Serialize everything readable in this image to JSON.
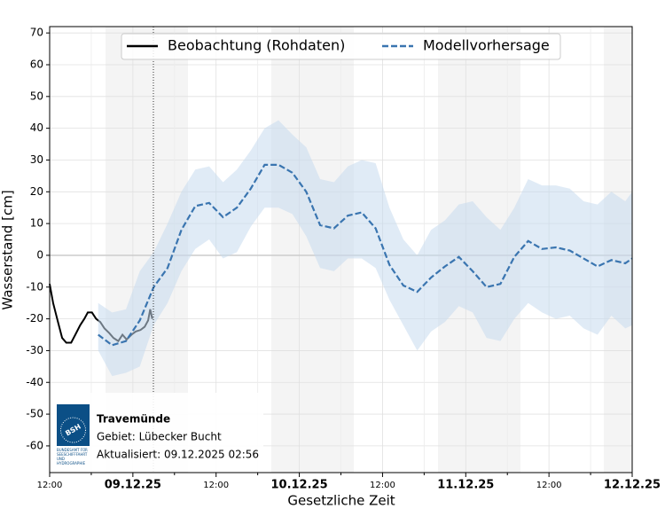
{
  "chart_data": {
    "type": "line",
    "xlabel": "Gesetzliche Zeit",
    "ylabel": "Wasserstand [cm]",
    "xlim": [
      0,
      84
    ],
    "ylim": [
      -68.4,
      72
    ],
    "xticks": [
      {
        "value": 0,
        "label": "12:00"
      },
      {
        "value": 12,
        "label": "09.12.25"
      },
      {
        "value": 24,
        "label": "12:00"
      },
      {
        "value": 36,
        "label": "10.12.25"
      },
      {
        "value": 48,
        "label": "12:00"
      },
      {
        "value": 60,
        "label": "11.12.25"
      },
      {
        "value": 72,
        "label": "12:00"
      },
      {
        "value": 84,
        "label": "12.12.25"
      }
    ],
    "yticks": [
      -60,
      -50,
      -40,
      -30,
      -20,
      -10,
      0,
      10,
      20,
      30,
      40,
      50,
      60,
      70
    ],
    "grid": true,
    "hline": 0,
    "legend": "top",
    "series": [
      {
        "name": "Beobachtung (Rohdaten)",
        "color": "#000000",
        "dash": false,
        "x": [
          0,
          0.5,
          1.2,
          1.8,
          2.4,
          3.1,
          3.7,
          4.4,
          5,
          5.5,
          6.1,
          6.7,
          7.3,
          7.9,
          8.6,
          9.2,
          9.9,
          10.5,
          11.1,
          11.8,
          12.4,
          13.1,
          13.7,
          14.2,
          14.5,
          14.8
        ],
        "values": [
          -9,
          -15,
          -21,
          -26,
          -27.5,
          -27.5,
          -25,
          -22,
          -20,
          -18,
          -18,
          -20,
          -21,
          -23,
          -24.5,
          -26,
          -27,
          -25,
          -26.5,
          -25,
          -24,
          -23.5,
          -22.5,
          -20.5,
          -17,
          -20
        ]
      },
      {
        "name": "Modellvorhersage",
        "color": "#3a75b0",
        "dash": true,
        "band_color": "#c6dbef",
        "x": [
          7,
          9,
          11,
          13,
          15,
          17,
          19,
          21,
          23,
          25,
          27,
          29,
          31,
          33,
          35,
          37,
          39,
          41,
          43,
          45,
          47,
          49,
          51,
          53,
          55,
          57,
          59,
          61,
          63,
          65,
          67,
          69,
          71,
          73,
          75,
          77,
          79,
          81,
          83,
          84
        ],
        "values": [
          -25,
          -28.3,
          -27,
          -20.5,
          -10,
          -4,
          8,
          15.5,
          16.5,
          12,
          15,
          21,
          28.5,
          28.5,
          26,
          20,
          9.5,
          8.5,
          12.5,
          13.5,
          8.5,
          -3,
          -9.5,
          -11.5,
          -7,
          -3.5,
          -0.5,
          -5,
          -10,
          -9,
          -0.5,
          4.5,
          2,
          2.5,
          1.5,
          -1,
          -3.5,
          -1.5,
          -2.5,
          -1
        ],
        "band_upper": [
          -15,
          -18,
          -17,
          -5,
          1,
          10,
          20,
          27,
          28,
          23,
          27,
          33,
          40,
          42.5,
          38,
          34,
          24,
          23,
          28,
          30,
          29,
          15,
          5,
          0,
          8,
          11,
          16,
          17,
          12,
          8,
          15,
          24,
          22,
          22,
          21,
          17,
          16,
          20,
          17,
          20
        ],
        "band_lower": [
          -30,
          -38,
          -37,
          -35,
          -22,
          -15,
          -5,
          2,
          5,
          -1,
          1,
          9,
          15,
          15,
          13,
          6,
          -4,
          -5,
          -1,
          -1,
          -4,
          -14,
          -22,
          -30,
          -24,
          -21,
          -16,
          -18,
          -26,
          -27,
          -20,
          -15,
          -18,
          -20,
          -19,
          -23,
          -25,
          -19,
          -23,
          -22
        ]
      }
    ],
    "station": "Travemünde",
    "area": "Gebiet: Lübecker Bucht",
    "updated": "Aktualisiert: 09.12.2025 02:56",
    "logo": {
      "text": "BSH",
      "caption": [
        "BUNDESAMT FÜR",
        "SEESCHIFFFAHRT",
        "UND",
        "HYDROGRAPHIE"
      ]
    }
  }
}
